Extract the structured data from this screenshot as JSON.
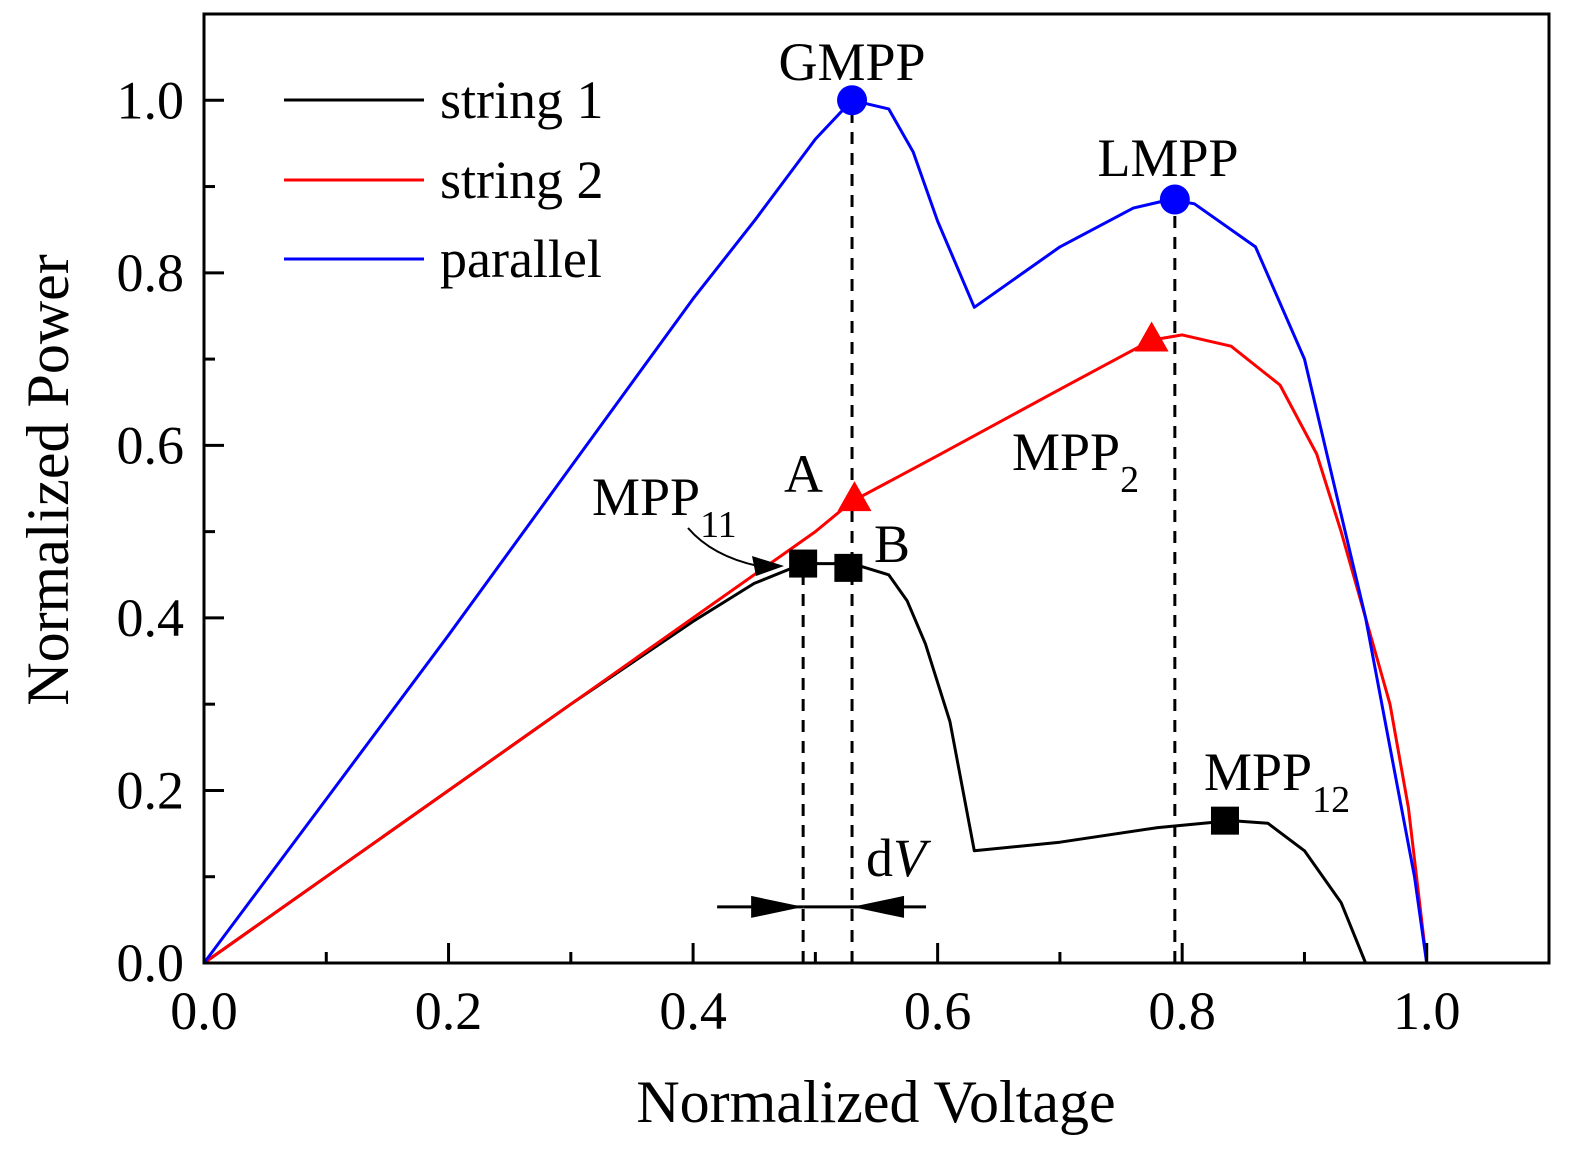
{
  "chart_data": {
    "type": "line",
    "title": "",
    "xlabel": "Normalized Voltage",
    "ylabel": "Normalized Power",
    "xlim": [
      0.0,
      1.1
    ],
    "ylim": [
      0.0,
      1.1
    ],
    "x_ticks": [
      "0.0",
      "0.2",
      "0.4",
      "0.6",
      "0.8",
      "1.0"
    ],
    "y_ticks": [
      "0.0",
      "0.2",
      "0.4",
      "0.6",
      "0.8",
      "1.0"
    ],
    "legend_position": "top-left",
    "series": [
      {
        "name": "string 1",
        "color": "#000000",
        "points": [
          [
            0,
            0
          ],
          [
            0.1,
            0.1
          ],
          [
            0.2,
            0.2
          ],
          [
            0.3,
            0.3
          ],
          [
            0.4,
            0.396
          ],
          [
            0.45,
            0.44
          ],
          [
            0.49,
            0.463
          ],
          [
            0.53,
            0.463
          ],
          [
            0.56,
            0.45
          ],
          [
            0.575,
            0.42
          ],
          [
            0.59,
            0.37
          ],
          [
            0.61,
            0.28
          ],
          [
            0.63,
            0.13
          ],
          [
            0.7,
            0.14
          ],
          [
            0.78,
            0.157
          ],
          [
            0.84,
            0.165
          ],
          [
            0.87,
            0.162
          ],
          [
            0.9,
            0.13
          ],
          [
            0.93,
            0.07
          ],
          [
            0.95,
            0
          ]
        ]
      },
      {
        "name": "string 2",
        "color": "#ff0000",
        "points": [
          [
            0,
            0
          ],
          [
            0.1,
            0.1
          ],
          [
            0.2,
            0.2
          ],
          [
            0.3,
            0.3
          ],
          [
            0.4,
            0.4
          ],
          [
            0.5,
            0.5
          ],
          [
            0.53,
            0.535
          ],
          [
            0.6,
            0.588
          ],
          [
            0.7,
            0.665
          ],
          [
            0.775,
            0.722
          ],
          [
            0.8,
            0.728
          ],
          [
            0.84,
            0.715
          ],
          [
            0.88,
            0.67
          ],
          [
            0.91,
            0.59
          ],
          [
            0.93,
            0.5
          ],
          [
            0.95,
            0.4
          ],
          [
            0.97,
            0.3
          ],
          [
            0.985,
            0.18
          ],
          [
            1.0,
            0
          ],
          [
            1.1,
            0
          ]
        ]
      },
      {
        "name": "parallel",
        "color": "#0000ff",
        "points": [
          [
            0,
            0
          ],
          [
            0.1,
            0.19
          ],
          [
            0.2,
            0.38
          ],
          [
            0.3,
            0.575
          ],
          [
            0.4,
            0.77
          ],
          [
            0.45,
            0.86
          ],
          [
            0.5,
            0.955
          ],
          [
            0.53,
            1.0
          ],
          [
            0.56,
            0.99
          ],
          [
            0.58,
            0.94
          ],
          [
            0.6,
            0.86
          ],
          [
            0.63,
            0.76
          ],
          [
            0.7,
            0.83
          ],
          [
            0.76,
            0.875
          ],
          [
            0.79,
            0.885
          ],
          [
            0.81,
            0.88
          ],
          [
            0.86,
            0.83
          ],
          [
            0.9,
            0.7
          ],
          [
            0.93,
            0.52
          ],
          [
            0.95,
            0.4
          ],
          [
            0.97,
            0.25
          ],
          [
            0.99,
            0.1
          ],
          [
            1.0,
            0
          ],
          [
            1.1,
            0
          ]
        ]
      }
    ],
    "markers": [
      {
        "name": "GMPP",
        "shape": "circle",
        "color": "#0000ff",
        "x": 0.53,
        "y": 1.0
      },
      {
        "name": "LMPP",
        "shape": "circle",
        "color": "#0000ff",
        "x": 0.794,
        "y": 0.885
      },
      {
        "name": "MPP2",
        "shape": "triangle",
        "color": "#ff0000",
        "x": 0.775,
        "y": 0.722
      },
      {
        "name": "A",
        "shape": "triangle",
        "color": "#ff0000",
        "x": 0.532,
        "y": 0.537
      },
      {
        "name": "MPP11",
        "shape": "square",
        "color": "#000000",
        "x": 0.49,
        "y": 0.463
      },
      {
        "name": "B",
        "shape": "square",
        "color": "#000000",
        "x": 0.527,
        "y": 0.458
      },
      {
        "name": "MPP12",
        "shape": "square",
        "color": "#000000",
        "x": 0.835,
        "y": 0.165
      }
    ],
    "reference_lines": [
      {
        "x": 0.53,
        "from_y": 0.0,
        "to_y": 1.0
      },
      {
        "x": 0.794,
        "from_y": 0.0,
        "to_y": 0.885
      },
      {
        "x": 0.49,
        "from_y": 0.0,
        "to_y": 0.463
      }
    ],
    "dv_arrow": {
      "x_left": 0.49,
      "x_right": 0.53,
      "y": 0.065
    },
    "annotations": {
      "gmpp": "GMPP",
      "lmpp": "LMPP",
      "mpp2_main": "MPP",
      "mpp2_sub": "2",
      "a": "A",
      "b": "B",
      "mpp11_main": "MPP",
      "mpp11_sub": "11",
      "mpp12_main": "MPP",
      "mpp12_sub": "12",
      "dv_d": "d",
      "dv_v": "V"
    }
  }
}
